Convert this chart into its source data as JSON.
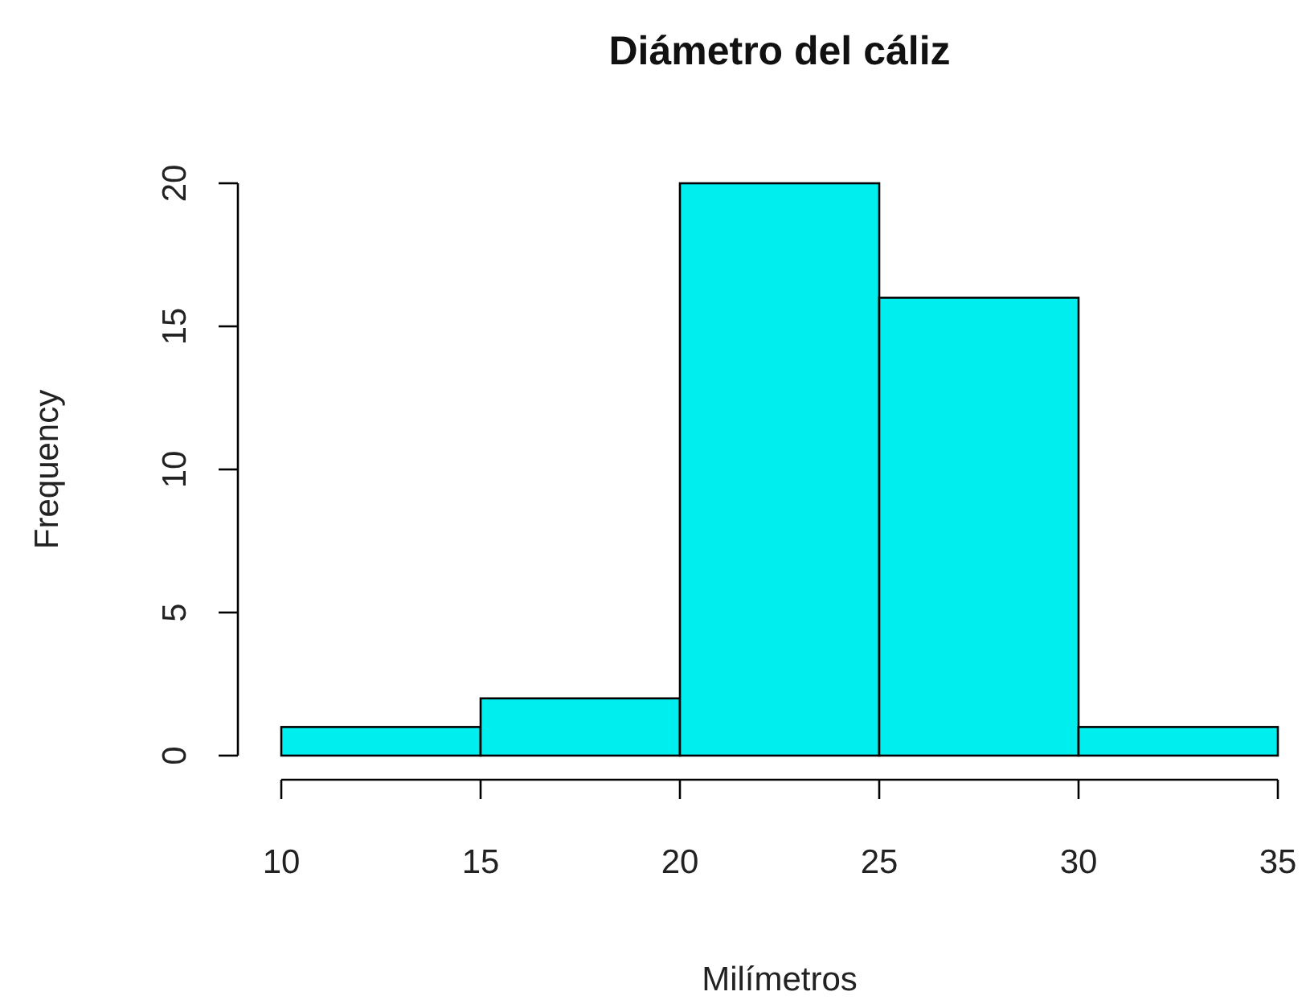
{
  "chart_data": {
    "type": "histogram",
    "title": "Diámetro del cáliz",
    "xlabel": "Milímetros",
    "ylabel": "Frequency",
    "bins": [
      10,
      15,
      20,
      25,
      30,
      35
    ],
    "values": [
      1,
      2,
      20,
      16,
      1
    ],
    "color": "#00eeee",
    "xlim": [
      10,
      35
    ],
    "xticks": [
      10,
      15,
      20,
      25,
      30,
      35
    ],
    "ylim": [
      0,
      20
    ],
    "yticks": [
      0,
      5,
      10,
      15,
      20
    ]
  }
}
